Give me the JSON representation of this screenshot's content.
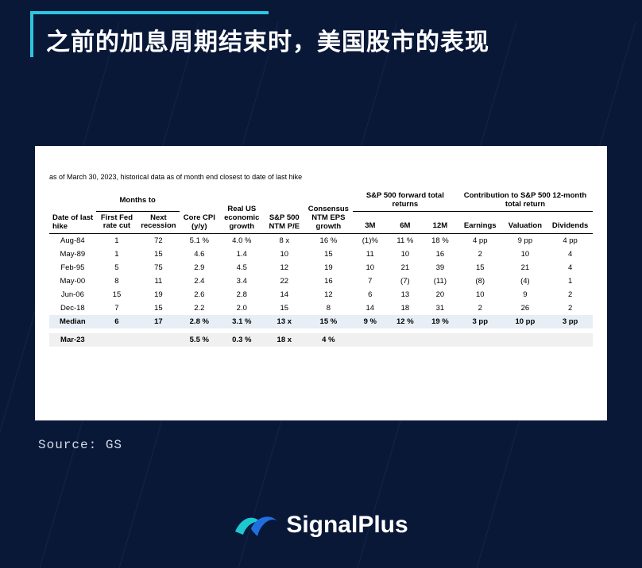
{
  "colors": {
    "page_bg": "#0a1838",
    "accent": "#2dc6e0",
    "card_bg": "#ffffff",
    "median_row_bg": "#e8eef6",
    "current_row_bg": "#f0f0f0",
    "text_light": "#d5dde8",
    "logo_teal": "#1dc8cf",
    "logo_blue": "#1f6fe0",
    "bg_line": "#2a4a7a"
  },
  "title": "之前的加息周期结束时，美国股市的表现",
  "asof_note": "as of March 30, 2023, historical data as of month end closest to date of last hike",
  "source_label": "Source: GS",
  "brand": "SignalPlus",
  "table": {
    "group_headers": {
      "g0": "Date of last hike",
      "g1": "Months to",
      "g2": "Core CPI (y/y)",
      "g3": "Real US economic growth",
      "g4": "S&P 500 NTM P/E",
      "g5": "Consensus NTM EPS growth",
      "g6": "S&P 500 forward total returns",
      "g7": "Contribution to S&P 500 12-month total return"
    },
    "sub_headers": {
      "c1": "First Fed rate cut",
      "c2": "Next recession",
      "c6a": "3M",
      "c6b": "6M",
      "c6c": "12M",
      "c7a": "Earnings",
      "c7b": "Valuation",
      "c7c": "Dividends"
    },
    "rows": [
      {
        "date": "Aug-84",
        "first_cut": "1",
        "recession": "72",
        "cpi": "5.1 %",
        "growth": "4.0 %",
        "pe": "8 x",
        "eps": "16 %",
        "r3": "(1)%",
        "r6": "11 %",
        "r12": "18 %",
        "earn": "4 pp",
        "val": "9 pp",
        "div": "4 pp"
      },
      {
        "date": "May-89",
        "first_cut": "1",
        "recession": "15",
        "cpi": "4.6",
        "growth": "1.4",
        "pe": "10",
        "eps": "15",
        "r3": "11",
        "r6": "10",
        "r12": "16",
        "earn": "2",
        "val": "10",
        "div": "4"
      },
      {
        "date": "Feb-95",
        "first_cut": "5",
        "recession": "75",
        "cpi": "2.9",
        "growth": "4.5",
        "pe": "12",
        "eps": "19",
        "r3": "10",
        "r6": "21",
        "r12": "39",
        "earn": "15",
        "val": "21",
        "div": "4"
      },
      {
        "date": "May-00",
        "first_cut": "8",
        "recession": "11",
        "cpi": "2.4",
        "growth": "3.4",
        "pe": "22",
        "eps": "16",
        "r3": "7",
        "r6": "(7)",
        "r12": "(11)",
        "earn": "(8)",
        "val": "(4)",
        "div": "1"
      },
      {
        "date": "Jun-06",
        "first_cut": "15",
        "recession": "19",
        "cpi": "2.6",
        "growth": "2.8",
        "pe": "14",
        "eps": "12",
        "r3": "6",
        "r6": "13",
        "r12": "20",
        "earn": "10",
        "val": "9",
        "div": "2"
      },
      {
        "date": "Dec-18",
        "first_cut": "7",
        "recession": "15",
        "cpi": "2.2",
        "growth": "2.0",
        "pe": "15",
        "eps": "8",
        "r3": "14",
        "r6": "18",
        "r12": "31",
        "earn": "2",
        "val": "26",
        "div": "2"
      }
    ],
    "median": {
      "date": "Median",
      "first_cut": "6",
      "recession": "17",
      "cpi": "2.8 %",
      "growth": "3.1 %",
      "pe": "13 x",
      "eps": "15 %",
      "r3": "9 %",
      "r6": "12 %",
      "r12": "19 %",
      "earn": "3 pp",
      "val": "10 pp",
      "div": "3 pp"
    },
    "current": {
      "date": "Mar-23",
      "first_cut": "",
      "recession": "",
      "cpi": "5.5 %",
      "growth": "0.3 %",
      "pe": "18 x",
      "eps": "4 %",
      "r3": "",
      "r6": "",
      "r12": "",
      "earn": "",
      "val": "",
      "div": ""
    }
  }
}
